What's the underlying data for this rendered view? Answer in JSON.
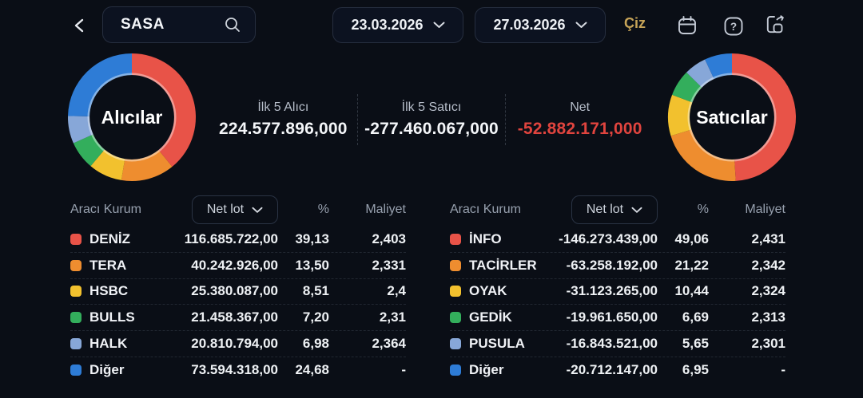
{
  "colors": {
    "red": "#e85348",
    "orange": "#ee8d2f",
    "yellow": "#f2c12e",
    "green": "#33ae5c",
    "steel": "#87a7d8",
    "blue": "#2e7cd6",
    "accent_gold": "#c7a458",
    "net_negative": "#e0443e",
    "background": "#0a0e16",
    "panel_border": "#262e3f",
    "muted_text": "#97a0ae"
  },
  "header": {
    "back_icon": "back-icon",
    "search": {
      "value": "SASA",
      "icon": "search-icon"
    },
    "date_from": "23.03.2026",
    "date_to": "27.03.2026",
    "draw_label": "Çiz",
    "toolbar_icons": [
      "calendar-icon",
      "help-icon",
      "export-icon"
    ]
  },
  "summary": {
    "items": [
      {
        "label": "İlk 5 Alıcı",
        "value": "224.577.896,000"
      },
      {
        "label": "İlk 5 Satıcı",
        "value": "-277.460.067,000"
      },
      {
        "label": "Net",
        "value": "-52.882.171,000"
      }
    ]
  },
  "charts": {
    "buyers_label": "Alıcılar",
    "sellers_label": "Satıcılar"
  },
  "chart_data": [
    {
      "type": "pie",
      "title": "Alıcılar",
      "donut": true,
      "labels": [
        "DENİZ",
        "TERA",
        "HSBC",
        "BULLS",
        "HALK",
        "Diğer"
      ],
      "values": [
        39.13,
        13.5,
        8.51,
        7.2,
        6.98,
        24.68
      ],
      "colors": [
        "#e85348",
        "#ee8d2f",
        "#f2c12e",
        "#33ae5c",
        "#87a7d8",
        "#2e7cd6"
      ],
      "start_angle_deg": 0,
      "direction": "clockwise"
    },
    {
      "type": "pie",
      "title": "Satıcılar",
      "donut": true,
      "labels": [
        "İNFO",
        "TACİRLER",
        "OYAK",
        "GEDİK",
        "PUSULA",
        "Diğer"
      ],
      "values": [
        49.06,
        21.22,
        10.44,
        6.69,
        5.65,
        6.95
      ],
      "colors": [
        "#e85348",
        "#ee8d2f",
        "#f2c12e",
        "#33ae5c",
        "#87a7d8",
        "#2e7cd6"
      ],
      "start_angle_deg": 0,
      "direction": "clockwise"
    }
  ],
  "tables": {
    "headers": {
      "broker": "Aracı Kurum",
      "netlot": "Net lot",
      "pct": "%",
      "cost": "Maliyet"
    },
    "buyers": {
      "rows": [
        {
          "name": "DENİZ",
          "color": "#e85348",
          "netlot": "116.685.722,00",
          "pct": "39,13",
          "cost": "2,403"
        },
        {
          "name": "TERA",
          "color": "#ee8d2f",
          "netlot": "40.242.926,00",
          "pct": "13,50",
          "cost": "2,331"
        },
        {
          "name": "HSBC",
          "color": "#f2c12e",
          "netlot": "25.380.087,00",
          "pct": "8,51",
          "cost": "2,4"
        },
        {
          "name": "BULLS",
          "color": "#33ae5c",
          "netlot": "21.458.367,00",
          "pct": "7,20",
          "cost": "2,31"
        },
        {
          "name": "HALK",
          "color": "#87a7d8",
          "netlot": "20.810.794,00",
          "pct": "6,98",
          "cost": "2,364"
        },
        {
          "name": "Diğer",
          "color": "#2e7cd6",
          "netlot": "73.594.318,00",
          "pct": "24,68",
          "cost": "-"
        }
      ]
    },
    "sellers": {
      "rows": [
        {
          "name": "İNFO",
          "color": "#e85348",
          "netlot": "-146.273.439,00",
          "pct": "49,06",
          "cost": "2,431"
        },
        {
          "name": "TACİRLER",
          "color": "#ee8d2f",
          "netlot": "-63.258.192,00",
          "pct": "21,22",
          "cost": "2,342"
        },
        {
          "name": "OYAK",
          "color": "#f2c12e",
          "netlot": "-31.123.265,00",
          "pct": "10,44",
          "cost": "2,324"
        },
        {
          "name": "GEDİK",
          "color": "#33ae5c",
          "netlot": "-19.961.650,00",
          "pct": "6,69",
          "cost": "2,313"
        },
        {
          "name": "PUSULA",
          "color": "#87a7d8",
          "netlot": "-16.843.521,00",
          "pct": "5,65",
          "cost": "2,301"
        },
        {
          "name": "Diğer",
          "color": "#2e7cd6",
          "netlot": "-20.712.147,00",
          "pct": "6,95",
          "cost": "-"
        }
      ]
    }
  }
}
